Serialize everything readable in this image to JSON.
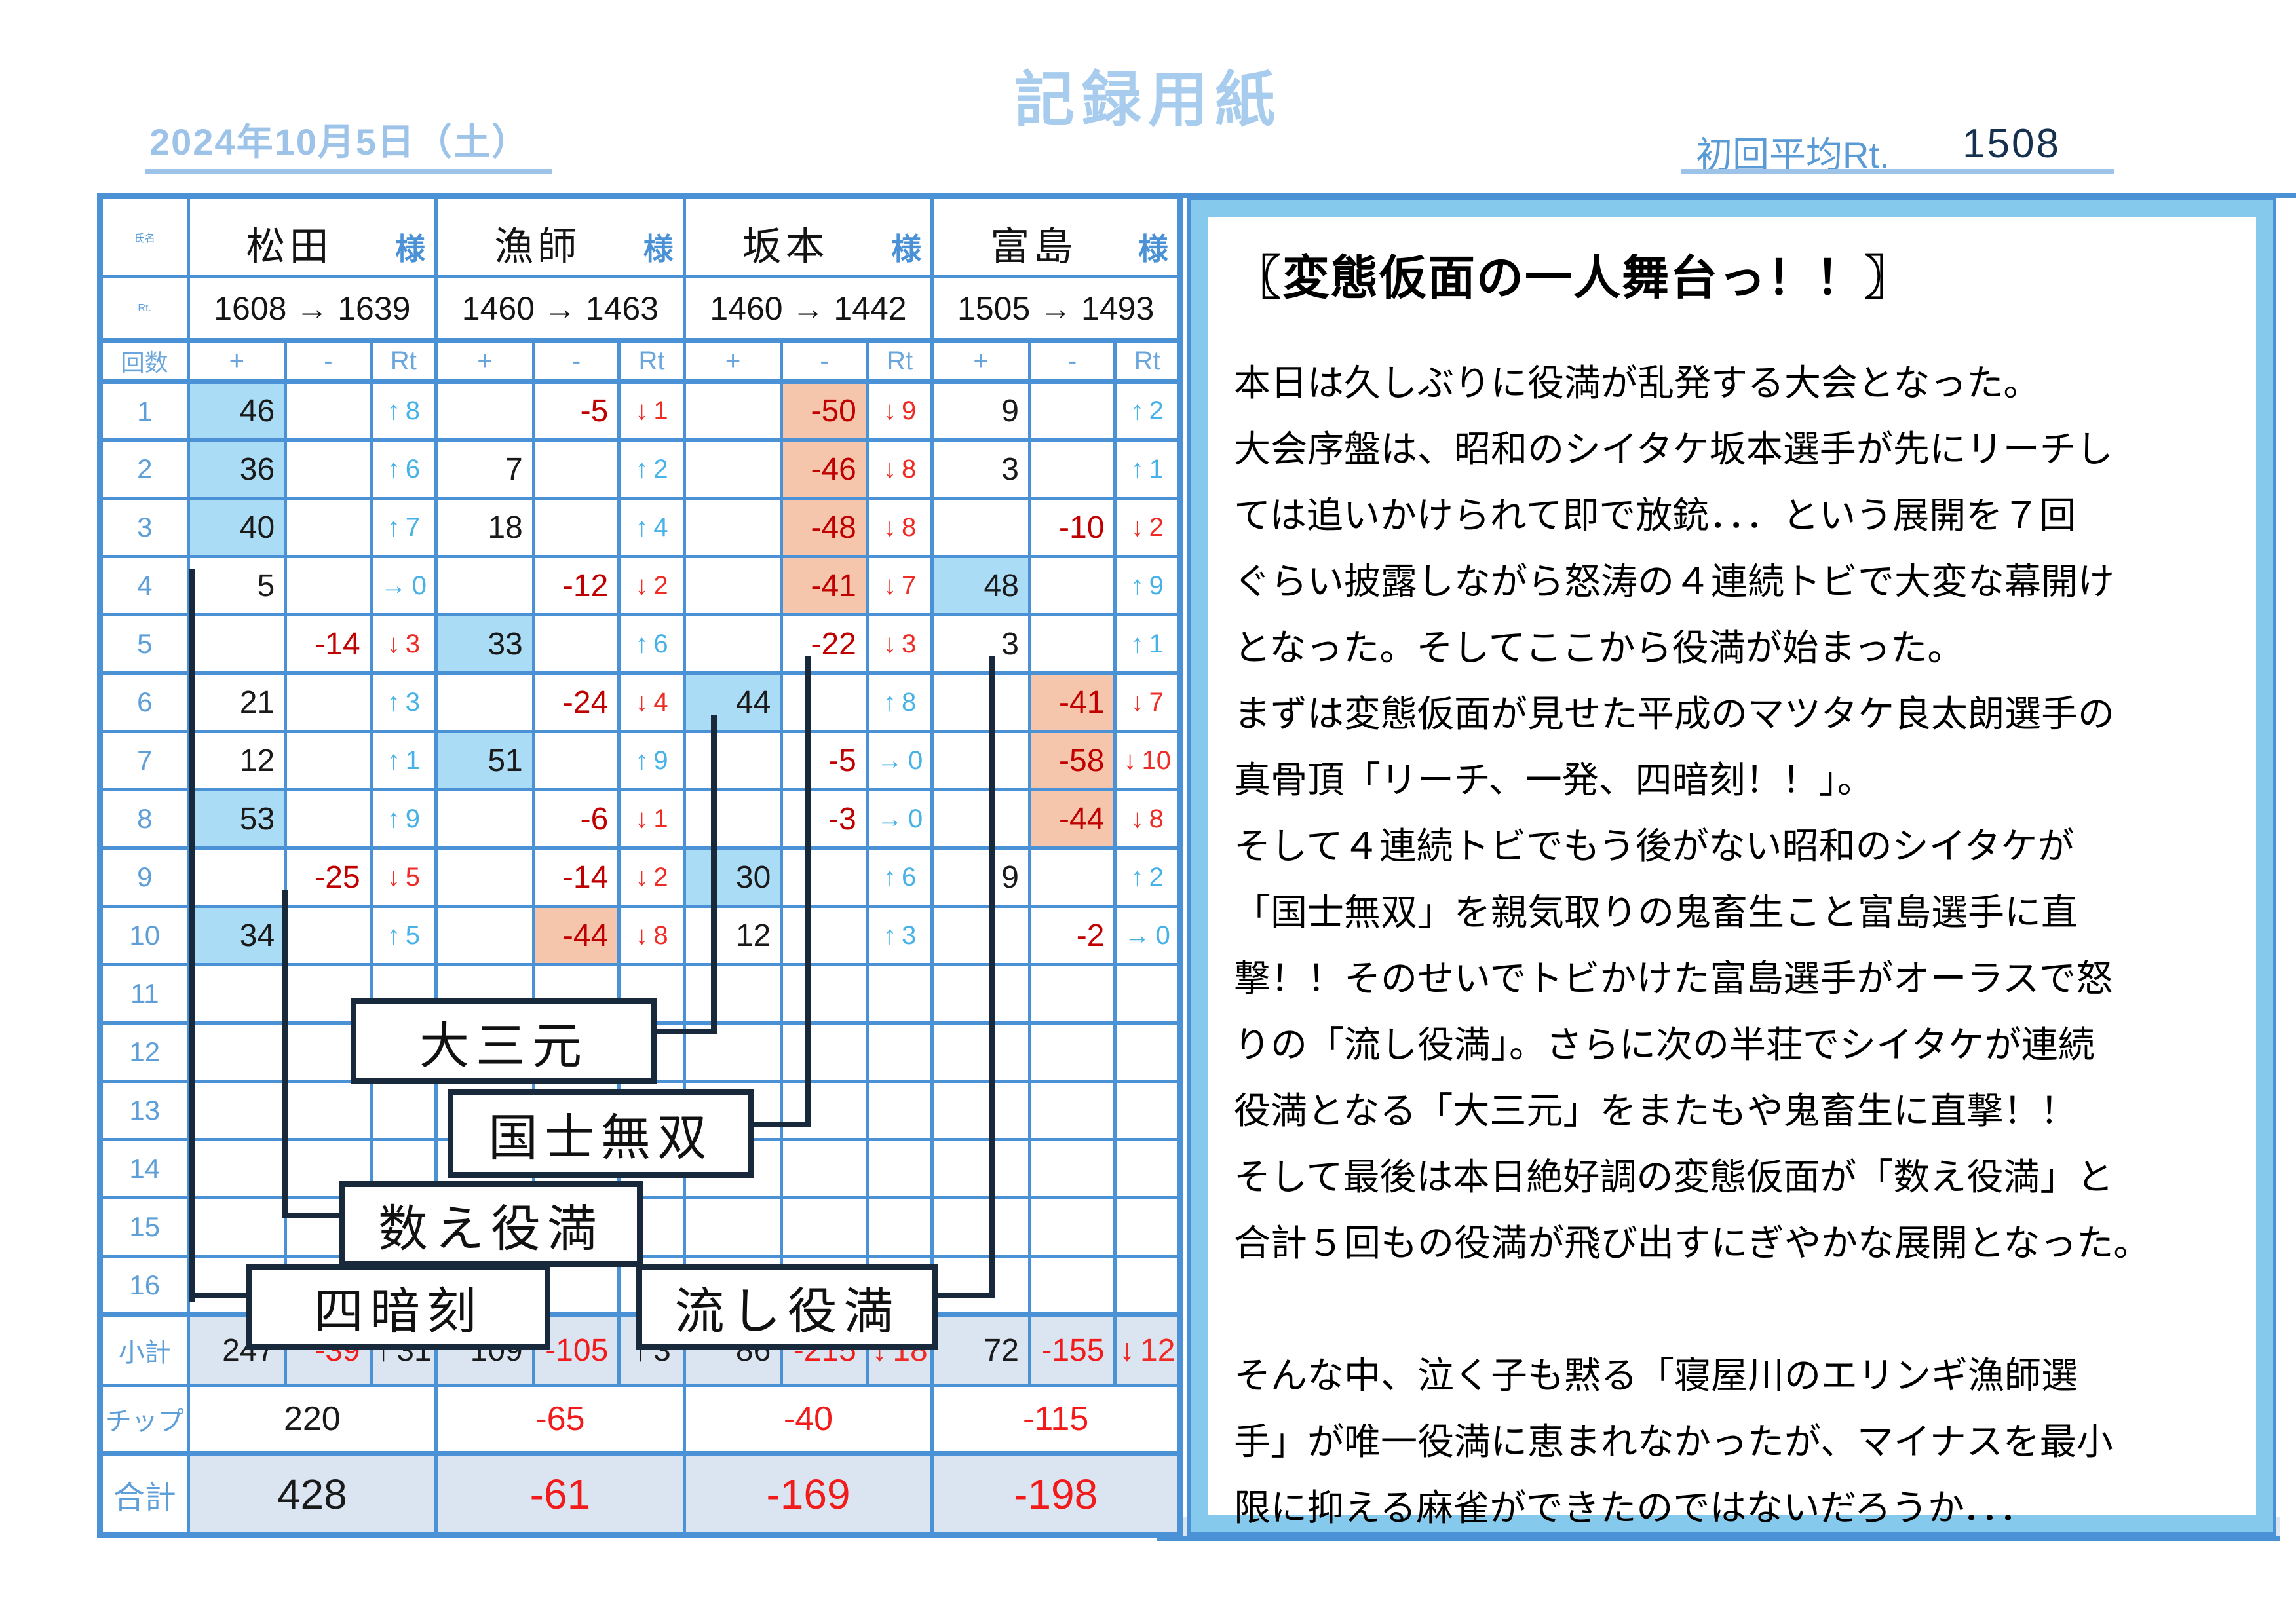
{
  "header": {
    "date": "2024年10月5日（土）",
    "title": "記録用紙",
    "avg_label": "初回平均Rt.",
    "avg_value": "1508"
  },
  "palette": {
    "border_blue": "#4a91d6",
    "highlight_blue": "#aadcf6",
    "highlight_orange": "#f5c6ab",
    "minus_dark_red": "#c00000",
    "minus_bright_red": "#f21b1b",
    "rt_up_blue": "#47b2e8",
    "rt_down_red": "#ee2b24",
    "pale_blue_text": "#9dc3e8",
    "label_blue": "#5b9bd5"
  },
  "table": {
    "corner_label": "氏名",
    "rt_label": "Rt.",
    "rounds_label": "回数",
    "col_plus": "+",
    "col_minus": "-",
    "col_rt": "Rt",
    "honorific": "様",
    "subtotal_label": "小計",
    "chip_label": "チップ",
    "total_label": "合計",
    "players": [
      {
        "name": "松田",
        "rating": "1608 → 1639"
      },
      {
        "name": "漁師",
        "rating": "1460 → 1463"
      },
      {
        "name": "坂本",
        "rating": "1460 → 1442"
      },
      {
        "name": "富島",
        "rating": "1505 → 1493"
      }
    ],
    "rows": [
      {
        "n": "1",
        "c": [
          [
            "46",
            "p",
            "b"
          ],
          null,
          [
            "↑8",
            "u"
          ],
          null,
          [
            "-5",
            "n"
          ],
          [
            "↓1",
            "d"
          ],
          null,
          [
            "-50",
            "n",
            "o"
          ],
          [
            "↓9",
            "d"
          ],
          [
            "9",
            "p"
          ],
          null,
          [
            "↑2",
            "u"
          ]
        ]
      },
      {
        "n": "2",
        "c": [
          [
            "36",
            "p",
            "b"
          ],
          null,
          [
            "↑6",
            "u"
          ],
          [
            "7",
            "p"
          ],
          null,
          [
            "↑2",
            "u"
          ],
          null,
          [
            "-46",
            "n",
            "o"
          ],
          [
            "↓8",
            "d"
          ],
          [
            "3",
            "p"
          ],
          null,
          [
            "↑1",
            "u"
          ]
        ]
      },
      {
        "n": "3",
        "c": [
          [
            "40",
            "p",
            "b"
          ],
          null,
          [
            "↑7",
            "u"
          ],
          [
            "18",
            "p"
          ],
          null,
          [
            "↑4",
            "u"
          ],
          null,
          [
            "-48",
            "n",
            "o"
          ],
          [
            "↓8",
            "d"
          ],
          null,
          [
            "-10",
            "n"
          ],
          [
            "↓2",
            "d"
          ]
        ]
      },
      {
        "n": "4",
        "c": [
          [
            "5",
            "p"
          ],
          null,
          [
            "→0",
            "z"
          ],
          null,
          [
            "-12",
            "n"
          ],
          [
            "↓2",
            "d"
          ],
          null,
          [
            "-41",
            "n",
            "o"
          ],
          [
            "↓7",
            "d"
          ],
          [
            "48",
            "p",
            "b"
          ],
          null,
          [
            "↑9",
            "u"
          ]
        ]
      },
      {
        "n": "5",
        "c": [
          null,
          [
            "-14",
            "n"
          ],
          [
            "↓3",
            "d"
          ],
          [
            "33",
            "p",
            "b"
          ],
          null,
          [
            "↑6",
            "u"
          ],
          null,
          [
            "-22",
            "n"
          ],
          [
            "↓3",
            "d"
          ],
          [
            "3",
            "p"
          ],
          null,
          [
            "↑1",
            "u"
          ]
        ]
      },
      {
        "n": "6",
        "c": [
          [
            "21",
            "p"
          ],
          null,
          [
            "↑3",
            "u"
          ],
          null,
          [
            "-24",
            "n"
          ],
          [
            "↓4",
            "d"
          ],
          [
            "44",
            "p",
            "b"
          ],
          null,
          [
            "↑8",
            "u"
          ],
          null,
          [
            "-41",
            "n",
            "o"
          ],
          [
            "↓7",
            "d"
          ]
        ]
      },
      {
        "n": "7",
        "c": [
          [
            "12",
            "p"
          ],
          null,
          [
            "↑1",
            "u"
          ],
          [
            "51",
            "p",
            "b"
          ],
          null,
          [
            "↑9",
            "u"
          ],
          null,
          [
            "-5",
            "n"
          ],
          [
            "→0",
            "z"
          ],
          null,
          [
            "-58",
            "n",
            "o"
          ],
          [
            "↓10",
            "d"
          ]
        ]
      },
      {
        "n": "8",
        "c": [
          [
            "53",
            "p",
            "b"
          ],
          null,
          [
            "↑9",
            "u"
          ],
          null,
          [
            "-6",
            "n"
          ],
          [
            "↓1",
            "d"
          ],
          null,
          [
            "-3",
            "n"
          ],
          [
            "→0",
            "z"
          ],
          null,
          [
            "-44",
            "n",
            "o"
          ],
          [
            "↓8",
            "d"
          ]
        ]
      },
      {
        "n": "9",
        "c": [
          null,
          [
            "-25",
            "n"
          ],
          [
            "↓5",
            "d"
          ],
          null,
          [
            "-14",
            "n"
          ],
          [
            "↓2",
            "d"
          ],
          [
            "30",
            "p",
            "b"
          ],
          null,
          [
            "↑6",
            "u"
          ],
          [
            "9",
            "p"
          ],
          null,
          [
            "↑2",
            "u"
          ]
        ]
      },
      {
        "n": "10",
        "c": [
          [
            "34",
            "p",
            "b"
          ],
          null,
          [
            "↑5",
            "u"
          ],
          null,
          [
            "-44",
            "n",
            "o"
          ],
          [
            "↓8",
            "d"
          ],
          [
            "12",
            "p"
          ],
          null,
          [
            "↑3",
            "u"
          ],
          null,
          [
            "-2",
            "n"
          ],
          [
            "→0",
            "z"
          ]
        ]
      },
      {
        "n": "11",
        "c": [
          null,
          null,
          null,
          null,
          null,
          null,
          null,
          null,
          null,
          null,
          null,
          null
        ]
      },
      {
        "n": "12",
        "c": [
          null,
          null,
          null,
          null,
          null,
          null,
          null,
          null,
          null,
          null,
          null,
          null
        ]
      },
      {
        "n": "13",
        "c": [
          null,
          null,
          null,
          null,
          null,
          null,
          null,
          null,
          null,
          null,
          null,
          null
        ]
      },
      {
        "n": "14",
        "c": [
          null,
          null,
          null,
          null,
          null,
          null,
          null,
          null,
          null,
          null,
          null,
          null
        ]
      },
      {
        "n": "15",
        "c": [
          null,
          null,
          null,
          null,
          null,
          null,
          null,
          null,
          null,
          null,
          null,
          null
        ]
      },
      {
        "n": "16",
        "c": [
          null,
          null,
          null,
          null,
          null,
          null,
          null,
          null,
          null,
          null,
          null,
          null
        ]
      }
    ],
    "subtotal": {
      "c": [
        [
          "247",
          "p"
        ],
        [
          "-39",
          "nb"
        ],
        [
          "↑31",
          "ub"
        ],
        [
          "109",
          "p"
        ],
        [
          "-105",
          "nb"
        ],
        [
          "↑3",
          "ub"
        ],
        [
          "86",
          "p"
        ],
        [
          "-215",
          "nb"
        ],
        [
          "↓18",
          "d"
        ],
        [
          "72",
          "p"
        ],
        [
          "-155",
          "nb"
        ],
        [
          "↓12",
          "d"
        ]
      ]
    },
    "chips": {
      "values": [
        [
          "220",
          "p"
        ],
        [
          "-65",
          "nb"
        ],
        [
          "-40",
          "nb"
        ],
        [
          "-115",
          "nb"
        ]
      ]
    },
    "totals": {
      "values": [
        [
          "428",
          "p"
        ],
        [
          "-61",
          "nb"
        ],
        [
          "-169",
          "nb"
        ],
        [
          "-198",
          "nb"
        ]
      ]
    }
  },
  "yakuman": {
    "labels": [
      "大三元",
      "国士無双",
      "数え役満",
      "四暗刻",
      "流し役満"
    ]
  },
  "story": {
    "title": "〖変態仮面の一人舞台っ！！〗",
    "lines": [
      "本日は久しぶりに役満が乱発する大会となった。",
      "大会序盤は、昭和のシイタケ坂本選手が先にリーチし",
      "ては追いかけられて即で放銃．．．という展開を７回",
      "ぐらい披露しながら怒涛の４連続トビで大変な幕開け",
      "となった。そしてここから役満が始まった。",
      "まずは変態仮面が見せた平成のマツタケ良太朗選手の",
      "真骨頂「リーチ、一発、四暗刻！！」。",
      "そして４連続トビでもう後がない昭和のシイタケが",
      "「国士無双」を親気取りの鬼畜生こと富島選手に直",
      "撃！！そのせいでトビかけた富島選手がオーラスで怒",
      "りの「流し役満」。さらに次の半荘でシイタケが連続",
      "役満となる「大三元」をまたもや鬼畜生に直撃！！",
      "そして最後は本日絶好調の変態仮面が「数え役満」と",
      "合計５回もの役満が飛び出すにぎやかな展開となった。",
      "",
      "そんな中、泣く子も黙る「寝屋川のエリンギ漁師選",
      "手」が唯一役満に恵まれなかったが、マイナスを最小",
      "限に抑える麻雀ができたのではないだろうか．．．"
    ]
  }
}
